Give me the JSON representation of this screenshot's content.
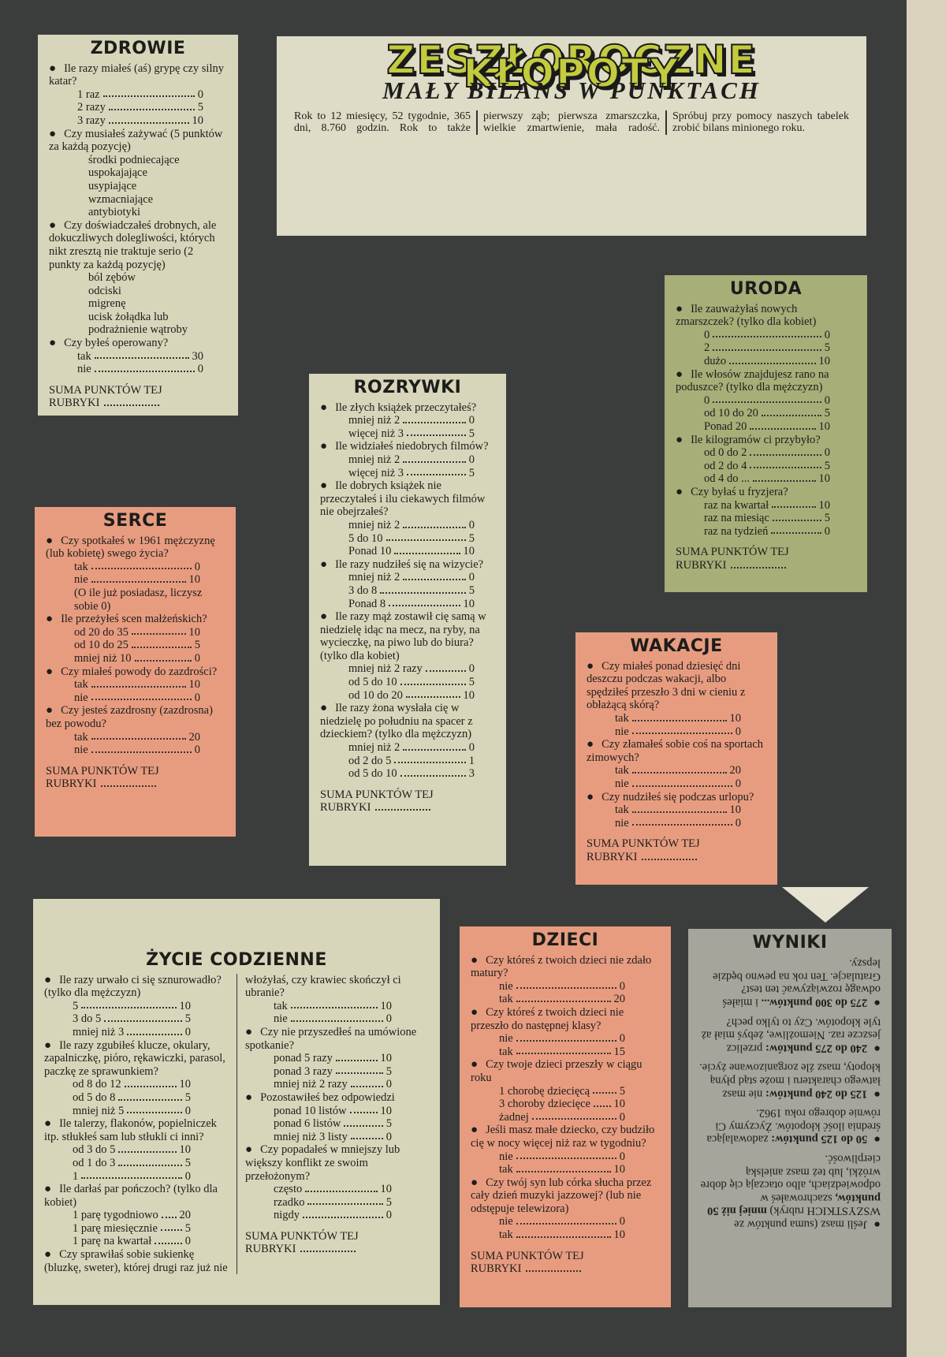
{
  "header": {
    "title": "ZESZŁOROCZNE KŁOPOTY",
    "subtitle": "MAŁY BILANS W PUNKTACH",
    "intro": "Rok to 12 miesięcy, 52 tygodnie, 365 dni, 8.760 godzin. Rok to także pierwszy ząb; pierwsza zmarszczka, wielkie zmartwienie, mała radość. Spróbuj przy pomocy naszych tabelek zrobić bilans minionego roku."
  },
  "sections": [
    {
      "title": "ZDROWIE",
      "color": "pale",
      "footer": "SUMA PUNKTÓW TEJ RUBRYKI",
      "questions": [
        {
          "text": "Ile razy miałeś (aś) grypę czy silny katar?",
          "options": [
            {
              "label": "1 raz",
              "points": 0
            },
            {
              "label": "2 razy",
              "points": 5
            },
            {
              "label": "3 razy",
              "points": 10
            }
          ]
        },
        {
          "text": "Czy musiałeś zażywać (5 punktów za każdą pozycję)",
          "items": [
            "środki podniecające",
            "uspokajające",
            "usypiające",
            "wzmacniające",
            "antybiotyki"
          ]
        },
        {
          "text": "Czy doświadczałeś drobnych, ale dokuczliwych dolegliwości, których nikt zresztą nie traktuje serio (2 punkty za każdą pozycję)",
          "items": [
            "ból zębów",
            "odciski",
            "migrenę",
            "ucisk żołądka lub podrażnienie wątroby"
          ]
        },
        {
          "text": "Czy byłeś operowany?",
          "options": [
            {
              "label": "tak",
              "points": 30
            },
            {
              "label": "nie",
              "points": 0
            }
          ]
        }
      ]
    },
    {
      "title": "URODA",
      "color": "olive",
      "footer": "SUMA PUNKTÓW TEJ RUBRYKI",
      "questions": [
        {
          "text": "Ile zauważyłaś nowych zmarszczek? (tylko dla kobiet)",
          "options": [
            {
              "label": "0",
              "points": 0
            },
            {
              "label": "2",
              "points": 5
            },
            {
              "label": "dużo",
              "points": 10
            }
          ]
        },
        {
          "text": "Ile włosów znajdujesz rano na poduszce? (tylko dla mężczyzn)",
          "options": [
            {
              "label": "0",
              "points": 0
            },
            {
              "label": "od 10 do 20",
              "points": 5
            },
            {
              "label": "Ponad 20",
              "points": 10
            }
          ]
        },
        {
          "text": "Ile kilogramów ci przybyło?",
          "options": [
            {
              "label": "od 0 do 2",
              "points": 0
            },
            {
              "label": "od 2 do 4",
              "points": 5
            },
            {
              "label": "od 4 do ...",
              "points": 10
            }
          ]
        },
        {
          "text": "Czy byłaś u fryzjera?",
          "options": [
            {
              "label": "raz na kwartał",
              "points": 10
            },
            {
              "label": "raz na miesiąc",
              "points": 5
            },
            {
              "label": "raz na tydzień",
              "points": 0
            }
          ]
        }
      ]
    },
    {
      "title": "ROZRYWKI",
      "color": "pale",
      "footer": "SUMA PUNKTÓW TEJ RUBRYKI",
      "questions": [
        {
          "text": "Ile złych książek przeczytałeś?",
          "options": [
            {
              "label": "mniej niż 2",
              "points": 0
            },
            {
              "label": "więcej niż 3",
              "points": 5
            }
          ]
        },
        {
          "text": "Ile widziałeś niedobrych filmów?",
          "options": [
            {
              "label": "mniej niż 2",
              "points": 0
            },
            {
              "label": "więcej niż 3",
              "points": 5
            }
          ]
        },
        {
          "text": "Ile dobrych książek nie przeczytałeś i ilu ciekawych filmów nie obejrzałeś?",
          "options": [
            {
              "label": "mniej niż 2",
              "points": 0
            },
            {
              "label": "5 do 10",
              "points": 5
            },
            {
              "label": "Ponad 10",
              "points": 10
            }
          ]
        },
        {
          "text": "Ile razy nudziłeś się na wizycie?",
          "options": [
            {
              "label": "mniej niż 2",
              "points": 0
            },
            {
              "label": "3 do 8",
              "points": 5
            },
            {
              "label": "Ponad 8",
              "points": 10
            }
          ]
        },
        {
          "text": "Ile razy mąż zostawił cię samą w niedzielę idąc na mecz, na ryby, na wycieczkę, na piwo lub do biura? (tylko dla kobiet)",
          "options": [
            {
              "label": "mniej niż 2 razy",
              "points": 0
            },
            {
              "label": "od 5 do 10",
              "points": 5
            },
            {
              "label": "od 10 do 20",
              "points": 10
            }
          ]
        },
        {
          "text": "Ile razy żona wysłała cię w niedzielę po południu na spacer z dzieckiem? (tylko dla mężczyzn)",
          "options": [
            {
              "label": "mniej niż 2",
              "points": 0
            },
            {
              "label": "od 2 do 5",
              "points": 1
            },
            {
              "label": "od 5 do 10",
              "points": 3
            }
          ]
        }
      ]
    },
    {
      "title": "SERCE",
      "color": "salmon",
      "footer": "SUMA PUNKTÓW TEJ RUBRYKI",
      "questions": [
        {
          "text": "Czy spotkałeś w 1961 mężczyznę (lub kobietę) swego życia?",
          "options": [
            {
              "label": "tak",
              "points": 0
            },
            {
              "label": "nie",
              "points": 10
            }
          ],
          "note": "(O ile już posiadasz, liczysz sobie 0)"
        },
        {
          "text": "Ile przeżyłeś scen małżeńskich?",
          "options": [
            {
              "label": "od 20 do 35",
              "points": 10
            },
            {
              "label": "od 10 do 25",
              "points": 5
            },
            {
              "label": "mniej niż 10",
              "points": 0
            }
          ]
        },
        {
          "text": "Czy miałeś powody do zazdrości?",
          "options": [
            {
              "label": "tak",
              "points": 10
            },
            {
              "label": "nie",
              "points": 0
            }
          ]
        },
        {
          "text": "Czy jesteś zazdrosny (zazdrosna) bez powodu?",
          "options": [
            {
              "label": "tak",
              "points": 20
            },
            {
              "label": "nie",
              "points": 0
            }
          ]
        }
      ]
    },
    {
      "title": "WAKACJE",
      "color": "salmon",
      "footer": "SUMA PUNKTÓW TEJ RUBRYKI",
      "questions": [
        {
          "text": "Czy miałeś ponad dziesięć dni deszczu podczas wakacji, albo spędziłeś przeszło 3 dni w cieniu z obłażącą skórą?",
          "options": [
            {
              "label": "tak",
              "points": 10
            },
            {
              "label": "nie",
              "points": 0
            }
          ]
        },
        {
          "text": "Czy złamałeś sobie coś na sportach zimowych?",
          "options": [
            {
              "label": "tak",
              "points": 20
            },
            {
              "label": "nie",
              "points": 0
            }
          ]
        },
        {
          "text": "Czy nudziłeś się podczas urlopu?",
          "options": [
            {
              "label": "tak",
              "points": 10
            },
            {
              "label": "nie",
              "points": 0
            }
          ]
        }
      ]
    },
    {
      "title": "ŻYCIE CODZIENNE",
      "color": "pale",
      "footer": "SUMA PUNKTÓW TEJ RUBRYKI",
      "questions": [
        {
          "text": "Ile razy urwało ci się sznurowadło? (tylko dla mężczyzn)",
          "options": [
            {
              "label": "5",
              "points": 10
            },
            {
              "label": "3 do 5",
              "points": 5
            },
            {
              "label": "mniej niż 3",
              "points": 0
            }
          ]
        },
        {
          "text": "Ile razy zgubiłeś klucze, okulary, zapalniczkę, pióro, rękawiczki, parasol, paczkę ze sprawunkiem?",
          "options": [
            {
              "label": "od 8 do 12",
              "points": 10
            },
            {
              "label": "od 5 do 8",
              "points": 5
            },
            {
              "label": "mniej niż 5",
              "points": 0
            }
          ]
        },
        {
          "text": "Ile talerzy, flakonów, popielniczek itp. stłukłeś sam lub stłukli ci inni?",
          "options": [
            {
              "label": "od 3 do 5",
              "points": 10
            },
            {
              "label": "od 1 do 3",
              "points": 5
            },
            {
              "label": "1",
              "points": 0
            }
          ]
        },
        {
          "text": "Ile darłaś par pończoch? (tylko dla kobiet)",
          "options": [
            {
              "label": "1 parę tygodniowo",
              "points": 20
            },
            {
              "label": "1 parę miesięcznie",
              "points": 5
            },
            {
              "label": "1 parę na kwartał",
              "points": 0
            }
          ]
        },
        {
          "text": "Czy sprawiłaś sobie sukienkę (bluzkę, sweter), której drugi raz już nie włożyłaś, czy krawiec skończył ci ubranie?",
          "options": [
            {
              "label": "tak",
              "points": 10
            },
            {
              "label": "nie",
              "points": 0
            }
          ]
        },
        {
          "text": "Czy nie przyszedłeś na umówione spotkanie?",
          "options": [
            {
              "label": "ponad 5 razy",
              "points": 10
            },
            {
              "label": "ponad 3 razy",
              "points": 5
            },
            {
              "label": "mniej niż 2 razy",
              "points": 0
            }
          ]
        },
        {
          "text": "Pozostawiłeś bez odpowiedzi",
          "options": [
            {
              "label": "ponad 10 listów",
              "points": 10
            },
            {
              "label": "ponad 6 listów",
              "points": 5
            },
            {
              "label": "mniej niż 3 listy",
              "points": 0
            }
          ]
        },
        {
          "text": "Czy popadałeś w mniejszy lub większy konflikt ze swoim przełożonym?",
          "options": [
            {
              "label": "często",
              "points": 10
            },
            {
              "label": "rzadko",
              "points": 5
            },
            {
              "label": "nigdy",
              "points": 0
            }
          ]
        }
      ]
    },
    {
      "title": "DZIECI",
      "color": "salmon",
      "footer": "SUMA PUNKTÓW TEJ RUBRYKI",
      "questions": [
        {
          "text": "Czy któreś z twoich dzieci nie zdało matury?",
          "options": [
            {
              "label": "nie",
              "points": 0
            },
            {
              "label": "tak",
              "points": 20
            }
          ]
        },
        {
          "text": "Czy któreś z twoich dzieci nie przeszło do następnej klasy?",
          "options": [
            {
              "label": "nie",
              "points": 0
            },
            {
              "label": "tak",
              "points": 15
            }
          ]
        },
        {
          "text": "Czy twoje dzieci przeszły w ciągu roku",
          "options": [
            {
              "label": "1 chorobę dziecięcą",
              "points": 5
            },
            {
              "label": "3 choroby dziecięce",
              "points": 10
            },
            {
              "label": "żadnej",
              "points": 0
            }
          ]
        },
        {
          "text": "Jeśli masz małe dziecko, czy budziło cię w nocy więcej niż raz w tygodniu?",
          "options": [
            {
              "label": "nie",
              "points": 0
            },
            {
              "label": "tak",
              "points": 10
            }
          ]
        },
        {
          "text": "Czy twój syn lub córka słucha przez cały dzień muzyki jazzowej? (lub nie odstępuje telewizora)",
          "options": [
            {
              "label": "nie",
              "points": 0
            },
            {
              "label": "tak",
              "points": 10
            }
          ]
        }
      ]
    },
    {
      "title": "WYNIKI",
      "color": "grey",
      "results": [
        {
          "before": "Jeśli masz (suma punktów ze WSZYSTKICH rubryk) ",
          "bold": "mniej niż 50 punktów,",
          "after": " szachrowałeś w odpowiedziach, albo otaczają cię dobre wróżki, lub też masz anielską cierpliwość."
        },
        {
          "bold": "50 do 125 punktów:",
          "after": " zadowalająca średnia ilość kłopotów. Życzymy Ci równie dobrego roku 1962."
        },
        {
          "bold": "125 do 240 punktów:",
          "after": " nie masz łatwego charakteru i może stąd płyną kłopoty, masz źle zorganizowane życie."
        },
        {
          "bold": "240 do 275 punktów:",
          "after": " przelicz jeszcze raz. Niemożliwe, żebyś miał aż tyle kłopotów. Czy to tylko pech?"
        },
        {
          "bold": "275 do 300 punktów...",
          "after": " i miałeś odwagę rozwiązywać ten test? Gratulacje. Ten rok na pewno będzie lepszy."
        }
      ]
    }
  ]
}
